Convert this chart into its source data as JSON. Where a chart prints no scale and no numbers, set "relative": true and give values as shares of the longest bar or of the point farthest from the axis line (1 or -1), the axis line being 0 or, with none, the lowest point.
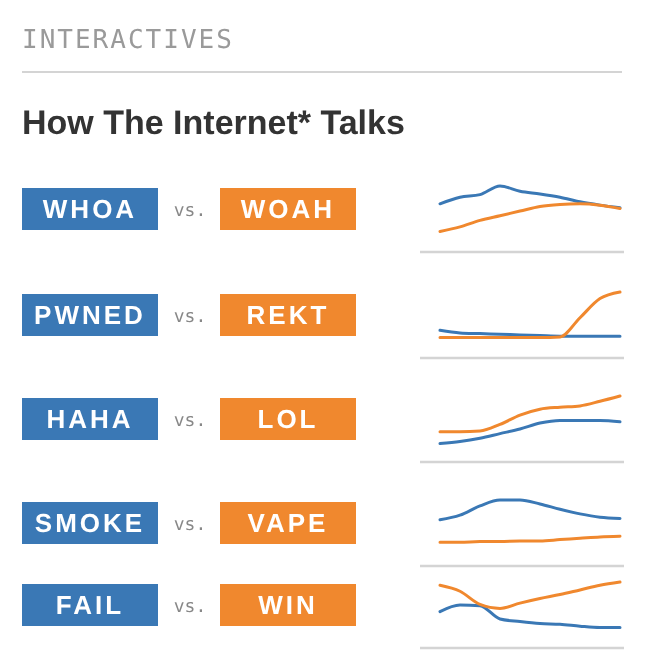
{
  "chart_data": [
    {
      "type": "other",
      "title": "How The Internet* Talks",
      "annotations": [
        "INTERACTIVES"
      ]
    },
    {
      "type": "line",
      "relative": true,
      "legend": "left",
      "annotations": [
        "vs."
      ],
      "categories": [
        null,
        null,
        null,
        null,
        null,
        null,
        null,
        null,
        null,
        null
      ],
      "series": [
        {
          "name": "WHOA",
          "color": "#3a78b5",
          "values": [
            0.73,
            0.83,
            0.87,
            1,
            0.92,
            0.88,
            0.83,
            0.76,
            0.71,
            0.67
          ]
        },
        {
          "name": "WOAH",
          "color": "#f0882e",
          "values": [
            0.31,
            0.38,
            0.48,
            0.55,
            0.62,
            0.69,
            0.72,
            0.73,
            0.71,
            0.66
          ]
        }
      ]
    },
    {
      "type": "line",
      "relative": true,
      "legend": "left",
      "annotations": [
        "vs."
      ],
      "categories": [
        null,
        null,
        null,
        null,
        null,
        null,
        null,
        null,
        null,
        null
      ],
      "series": [
        {
          "name": "PWNED",
          "color": "#3a78b5",
          "values": [
            0.42,
            0.38,
            0.37,
            0.36,
            0.35,
            0.34,
            0.33,
            0.33,
            0.33,
            0.33
          ]
        },
        {
          "name": "REKT",
          "color": "#f0882e",
          "values": [
            0.31,
            0.31,
            0.31,
            0.31,
            0.31,
            0.31,
            0.32,
            0.61,
            0.9,
            1
          ]
        }
      ]
    },
    {
      "type": "line",
      "relative": true,
      "legend": "left",
      "annotations": [
        "vs."
      ],
      "categories": [
        null,
        null,
        null,
        null,
        null,
        null,
        null,
        null,
        null,
        null
      ],
      "series": [
        {
          "name": "HAHA",
          "color": "#3a78b5",
          "values": [
            0.28,
            0.31,
            0.36,
            0.43,
            0.5,
            0.59,
            0.63,
            0.63,
            0.63,
            0.61
          ]
        },
        {
          "name": "LOL",
          "color": "#f0882e",
          "values": [
            0.46,
            0.46,
            0.47,
            0.57,
            0.71,
            0.8,
            0.83,
            0.85,
            0.92,
            1
          ]
        }
      ]
    },
    {
      "type": "line",
      "relative": true,
      "legend": "left",
      "annotations": [
        "vs."
      ],
      "categories": [
        null,
        null,
        null,
        null,
        null,
        null,
        null,
        null,
        null,
        null
      ],
      "series": [
        {
          "name": "SMOKE",
          "color": "#3a78b5",
          "values": [
            0.7,
            0.77,
            0.91,
            1,
            1,
            0.94,
            0.86,
            0.79,
            0.74,
            0.72
          ]
        },
        {
          "name": "VAPE",
          "color": "#f0882e",
          "values": [
            0.36,
            0.36,
            0.37,
            0.37,
            0.38,
            0.38,
            0.4,
            0.42,
            0.44,
            0.45
          ]
        }
      ]
    },
    {
      "type": "line",
      "relative": true,
      "legend": "left",
      "annotations": [
        "vs."
      ],
      "categories": [
        null,
        null,
        null,
        null,
        null,
        null,
        null,
        null,
        null,
        null
      ],
      "series": [
        {
          "name": "FAIL",
          "color": "#3a78b5",
          "values": [
            0.55,
            0.65,
            0.64,
            0.44,
            0.4,
            0.37,
            0.36,
            0.33,
            0.31,
            0.31
          ]
        },
        {
          "name": "WIN",
          "color": "#f0882e",
          "values": [
            0.95,
            0.86,
            0.66,
            0.6,
            0.68,
            0.75,
            0.81,
            0.88,
            0.95,
            1
          ]
        }
      ]
    }
  ]
}
